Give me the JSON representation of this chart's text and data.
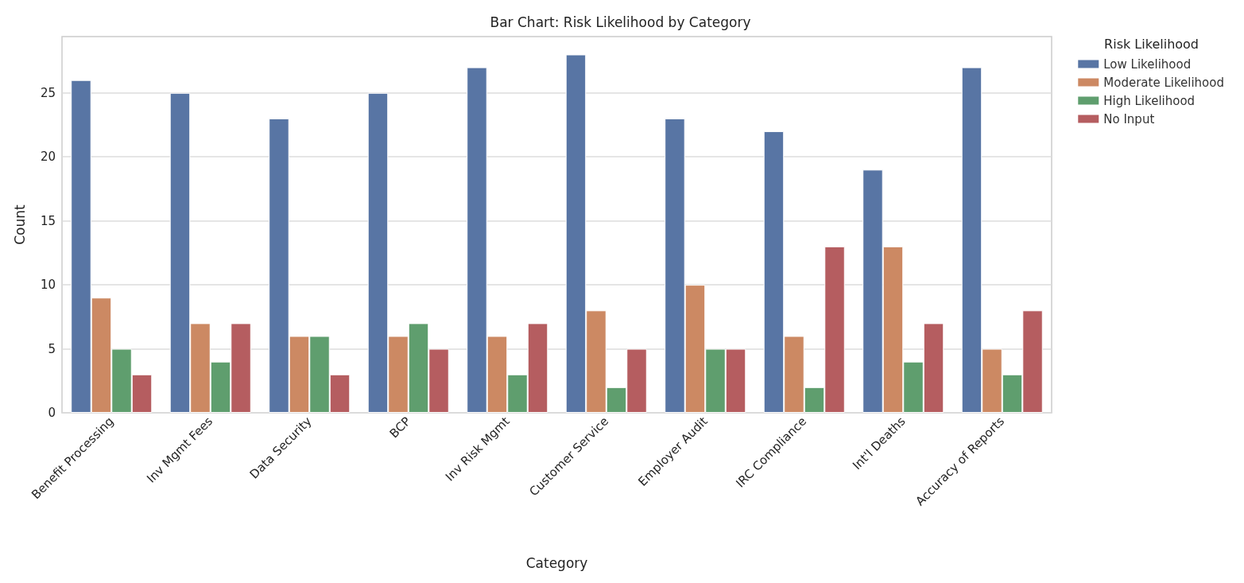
{
  "chart_data": {
    "type": "bar",
    "title": "Bar Chart: Risk Likelihood by Category",
    "xlabel": "Category",
    "ylabel": "Count",
    "legend_title": "Risk Likelihood",
    "categories": [
      "Benefit Processing",
      "Inv Mgmt Fees",
      "Data Security",
      "BCP",
      "Inv Risk Mgmt",
      "Customer Service",
      "Employer Audit",
      "IRC Compliance",
      "Int'l Deaths",
      "Accuracy of Reports"
    ],
    "series": [
      {
        "name": "Low Likelihood",
        "color": "#5875a4",
        "values": [
          26,
          25,
          23,
          25,
          27,
          28,
          23,
          22,
          19,
          27
        ]
      },
      {
        "name": "Moderate Likelihood",
        "color": "#cc8963",
        "values": [
          9,
          7,
          6,
          6,
          6,
          8,
          10,
          6,
          13,
          5
        ]
      },
      {
        "name": "High Likelihood",
        "color": "#5f9e6e",
        "values": [
          5,
          4,
          6,
          7,
          3,
          2,
          5,
          2,
          4,
          3
        ]
      },
      {
        "name": "No Input",
        "color": "#b55d60",
        "values": [
          3,
          7,
          3,
          5,
          7,
          5,
          5,
          13,
          7,
          8
        ]
      }
    ],
    "ylim": [
      0,
      29.4
    ],
    "yticks": [
      0,
      5,
      10,
      15,
      20,
      25
    ],
    "grid": "y",
    "legend": "top right"
  }
}
